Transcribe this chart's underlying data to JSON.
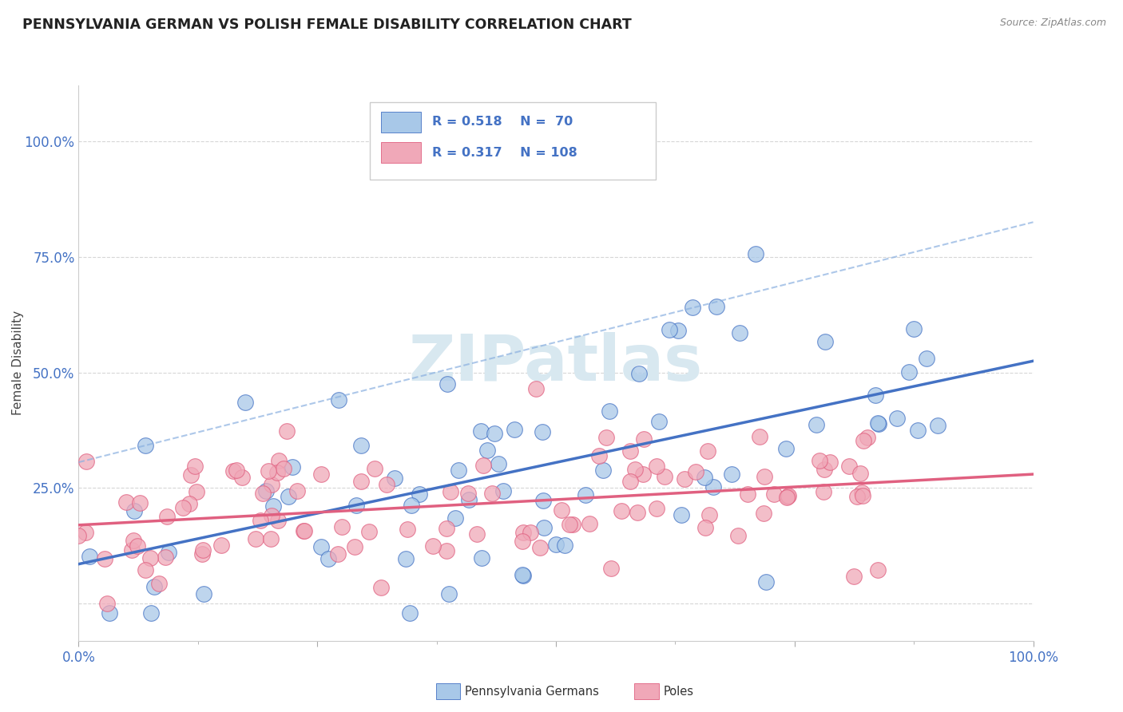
{
  "title": "PENNSYLVANIA GERMAN VS POLISH FEMALE DISABILITY CORRELATION CHART",
  "source": "Source: ZipAtlas.com",
  "ylabel": "Female Disability",
  "xlim": [
    0,
    1.0
  ],
  "ylim": [
    -0.08,
    1.12
  ],
  "r_blue": 0.518,
  "n_blue": 70,
  "r_pink": 0.317,
  "n_pink": 108,
  "blue_fill": "#A8C8E8",
  "pink_fill": "#F0A8B8",
  "blue_edge": "#4472C4",
  "pink_edge": "#E06080",
  "blue_line": "#4472C4",
  "pink_line": "#E06080",
  "dash_line": "#8AB0E0",
  "legend_text_color": "#4472C4",
  "watermark_color": "#D8E8F0",
  "bg_color": "#FFFFFF",
  "grid_color": "#CCCCCC",
  "title_color": "#222222",
  "axis_tick_color": "#4472C4",
  "source_color": "#888888"
}
